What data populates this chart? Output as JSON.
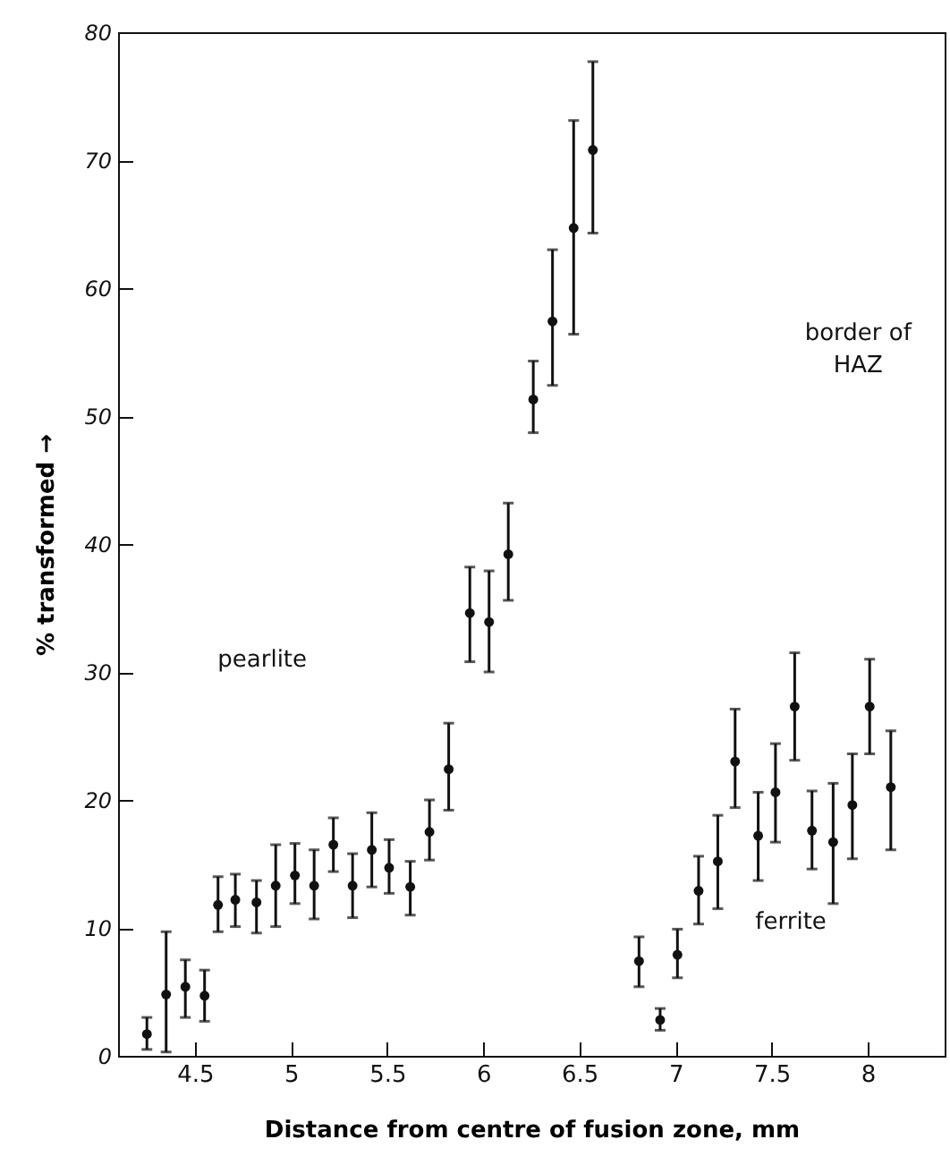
{
  "chart_data": {
    "type": "scatter",
    "xlabel": "Distance from centre of fusion zone,   mm",
    "ylabel": "% transformed →",
    "x": [
      4.25,
      4.35,
      4.45,
      4.55,
      4.62,
      4.71,
      4.82,
      4.92,
      5.02,
      5.12,
      5.22,
      5.32,
      5.42,
      5.51,
      5.62,
      5.72,
      5.82,
      5.93,
      6.03,
      6.13,
      6.26,
      6.36,
      6.47,
      6.57,
      6.81,
      6.92,
      7.01,
      7.12,
      7.22,
      7.31,
      7.43,
      7.52,
      7.62,
      7.71,
      7.82,
      7.92,
      8.01,
      8.12
    ],
    "values": [
      1.7,
      4.8,
      5.4,
      4.7,
      11.8,
      12.2,
      12.0,
      13.3,
      14.1,
      13.3,
      16.5,
      13.3,
      16.1,
      14.7,
      13.2,
      17.5,
      22.4,
      34.6,
      33.9,
      39.2,
      51.3,
      57.4,
      64.7,
      70.8,
      7.4,
      2.8,
      7.9,
      12.9,
      15.2,
      23.0,
      17.2,
      20.6,
      27.3,
      17.6,
      16.7,
      19.6,
      27.3,
      21.0
    ],
    "errors": [
      [
        0.5,
        3.0
      ],
      [
        0.3,
        9.7
      ],
      [
        3.0,
        7.5
      ],
      [
        2.7,
        6.7
      ],
      [
        9.7,
        14.0
      ],
      [
        10.1,
        14.2
      ],
      [
        9.6,
        13.7
      ],
      [
        10.1,
        16.5
      ],
      [
        11.9,
        16.6
      ],
      [
        10.7,
        16.1
      ],
      [
        14.4,
        18.6
      ],
      [
        10.8,
        15.8
      ],
      [
        13.2,
        19.0
      ],
      [
        12.7,
        16.9
      ],
      [
        11.0,
        15.2
      ],
      [
        15.3,
        20.0
      ],
      [
        19.2,
        26.0
      ],
      [
        30.8,
        38.2
      ],
      [
        30.0,
        37.9
      ],
      [
        35.6,
        43.2
      ],
      [
        48.7,
        54.3
      ],
      [
        52.4,
        63.0
      ],
      [
        56.4,
        73.1
      ],
      [
        64.3,
        77.7
      ],
      [
        5.4,
        9.3
      ],
      [
        2.0,
        3.7
      ],
      [
        6.1,
        9.9
      ],
      [
        10.3,
        15.6
      ],
      [
        11.5,
        18.8
      ],
      [
        19.4,
        27.1
      ],
      [
        13.7,
        20.6
      ],
      [
        16.7,
        24.4
      ],
      [
        23.1,
        31.5
      ],
      [
        14.6,
        20.7
      ],
      [
        11.9,
        21.3
      ],
      [
        15.4,
        23.6
      ],
      [
        23.6,
        31.0
      ],
      [
        16.1,
        25.4
      ]
    ],
    "color": "#111111",
    "marker": "circle",
    "xlim": [
      4.1,
      8.4
    ],
    "xticks": [
      4.5,
      5,
      5.5,
      6,
      6.5,
      7,
      7.5,
      8
    ],
    "ylim": [
      0,
      80
    ],
    "yticks": [
      0,
      10,
      20,
      30,
      40,
      50,
      60,
      70,
      80
    ],
    "annotations": [
      "pearlite",
      "border of\nHAZ",
      "ferrite"
    ]
  }
}
